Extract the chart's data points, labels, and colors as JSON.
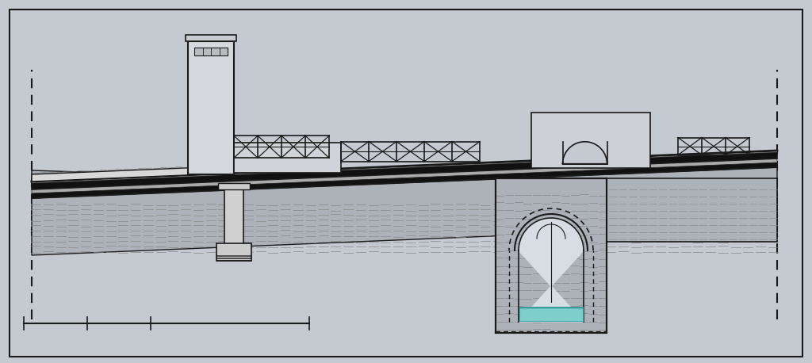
{
  "bg_color": "#c5c9d0",
  "line_color": "#1a1a1a",
  "fig_width": 10.24,
  "fig_height": 4.58,
  "dpi": 100,
  "stone_fill": "#b8bcc2",
  "stone_hatch_fill": "#adb2b8",
  "road_dark": "#1a1a1a",
  "road_mid": "#888888",
  "road_light": "#cccccc",
  "water_color": "#7ecece",
  "wall_fill": "#c8ccd2",
  "struct_fill": "#d2d5da",
  "inner_arch_fill": "#d8dde3"
}
